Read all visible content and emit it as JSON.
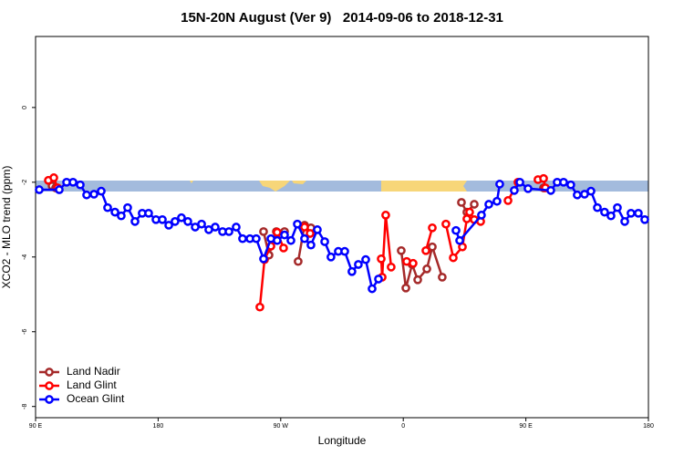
{
  "chart_data": {
    "type": "line",
    "title": "15N-20N August (Ver 9)   2014-09-06 to 2018-12-31",
    "x_label": "Longitude",
    "y_label": "XCO2 - MLO trend (ppm)",
    "xlim": [
      90,
      540
    ],
    "xticks": [
      {
        "value": 90,
        "label": "90 E"
      },
      180,
      {
        "value": 270,
        "label": "90 W"
      },
      {
        "value": 360,
        "label": "0"
      },
      {
        "value": 450,
        "label": "90 E"
      },
      {
        "value": 540,
        "label": "180"
      }
    ],
    "ylim": [
      -8.3,
      1.9
    ],
    "yticks": [
      -8,
      -6,
      -4,
      -2,
      0
    ],
    "legend": "bottomleft",
    "series": [
      {
        "name": "Land Nadir",
        "color": "#a52a2a",
        "x": [
          102.1,
          104.7,
          null,
          257.4,
          261.4,
          266.8,
          272.8,
          null,
          282.8,
          287.5,
          292.2,
          null,
          358.5,
          361.9,
          366.5,
          370.6,
          377.3,
          381.3,
          388.6,
          null,
          402.7,
          406.7,
          412.1,
          null,
          463.0
        ],
        "values": [
          -2.1,
          -2.15,
          null,
          -3.32,
          -3.95,
          -3.32,
          -3.32,
          null,
          -4.12,
          -3.15,
          -3.22,
          null,
          -3.83,
          -4.83,
          -4.2,
          -4.61,
          -4.32,
          -3.73,
          -4.54,
          null,
          -2.54,
          -2.8,
          -2.59,
          null,
          -2.15
        ]
      },
      {
        "name": "Land Glint",
        "color": "#ff0000",
        "x": [
          99.4,
          103.4,
          106.1,
          null,
          254.7,
          258.1,
          262.8,
          267.4,
          272.1,
          null,
          287.5,
          291.6,
          null,
          343.8,
          344.5,
          347.1,
          351.1,
          null,
          362.5,
          367.2,
          null,
          376.6,
          381.3,
          null,
          391.3,
          396.7,
          403.4,
          406.7,
          408.7,
          412.1,
          416.8,
          null,
          436.9,
          444.2,
          null,
          458.9,
          463.0,
          464.3
        ],
        "values": [
          -1.95,
          -1.88,
          -2.15,
          null,
          -5.34,
          -4.07,
          -3.71,
          -3.34,
          -3.76,
          null,
          -3.2,
          -3.37,
          null,
          -4.05,
          -4.54,
          -2.88,
          -4.27,
          null,
          -4.12,
          -4.17,
          null,
          -3.83,
          -3.22,
          null,
          -3.12,
          -4.02,
          -3.73,
          -2.98,
          -2.8,
          -3.0,
          -3.05,
          null,
          -2.49,
          -2.0,
          null,
          -1.93,
          -1.9,
          -2.15
        ]
      },
      {
        "name": "Ocean Glint",
        "color": "#0000ff",
        "x": [
          92.7,
          107.4,
          112.8,
          117.5,
          122.8,
          127.5,
          132.9,
          138.2,
          142.9,
          148.3,
          152.9,
          157.6,
          163.0,
          168.3,
          173.0,
          178.4,
          183.1,
          187.8,
          192.4,
          197.1,
          201.8,
          207.2,
          211.9,
          217.2,
          221.9,
          227.3,
          232.0,
          237.3,
          242.0,
          247.4,
          252.0,
          257.4,
          262.8,
          267.4,
          272.8,
          277.5,
          282.2,
          287.5,
          292.2,
          296.9,
          302.3,
          306.9,
          312.3,
          317.0,
          322.3,
          327.0,
          332.4,
          337.1,
          341.8,
          null,
          398.7,
          401.4,
          417.4,
          422.8,
          428.8,
          430.8,
          null,
          441.5,
          445.6,
          451.6,
          468.3,
          473.0,
          477.7,
          483.0,
          487.7,
          493.1,
          497.8,
          502.5,
          507.8,
          512.5,
          517.2,
          522.6,
          527.2,
          532.6,
          537.3
        ],
        "values": [
          -2.2,
          -2.2,
          -2.0,
          -2.0,
          -2.07,
          -2.34,
          -2.32,
          -2.24,
          -2.68,
          -2.8,
          -2.9,
          -2.68,
          -3.05,
          -2.83,
          -2.83,
          -3.0,
          -3.0,
          -3.15,
          -3.05,
          -2.95,
          -3.05,
          -3.2,
          -3.12,
          -3.27,
          -3.2,
          -3.32,
          -3.32,
          -3.2,
          -3.51,
          -3.51,
          -3.51,
          -4.05,
          -3.51,
          -3.56,
          -3.41,
          -3.56,
          -3.12,
          -3.51,
          -3.68,
          -3.27,
          -3.59,
          -4.0,
          -3.85,
          -3.85,
          -4.39,
          -4.2,
          -4.07,
          -4.85,
          -4.59,
          null,
          -3.29,
          -3.56,
          -2.88,
          -2.59,
          -2.51,
          -2.05,
          null,
          -2.22,
          -2.0,
          -2.17,
          -2.22,
          -2.0,
          -2.0,
          -2.07,
          -2.34,
          -2.32,
          -2.24,
          -2.68,
          -2.8,
          -2.9,
          -2.68,
          -3.05,
          -2.83,
          -2.83,
          -3.0
        ]
      }
    ]
  }
}
